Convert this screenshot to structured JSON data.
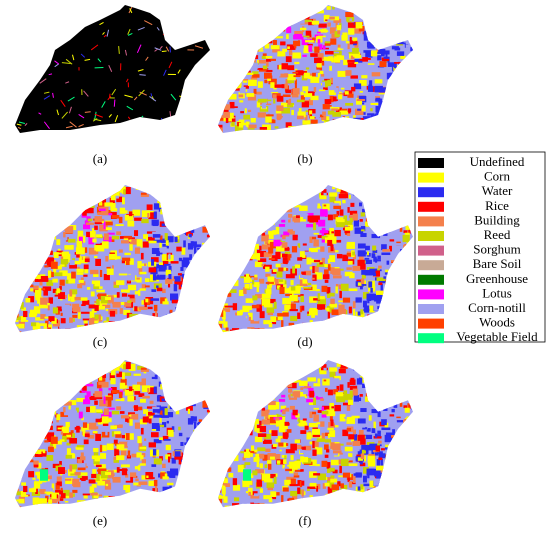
{
  "panels": [
    {
      "label": "(a)"
    },
    {
      "label": "(b)"
    },
    {
      "label": "(c)"
    },
    {
      "label": "(d)"
    },
    {
      "label": "(e)"
    },
    {
      "label": "(f)"
    }
  ],
  "legend": [
    {
      "label": "Undefined",
      "color": "#000000"
    },
    {
      "label": "Corn",
      "color": "#ffff00"
    },
    {
      "label": "Water",
      "color": "#2b2bf0"
    },
    {
      "label": "Rice",
      "color": "#ff0000"
    },
    {
      "label": "Building",
      "color": "#f4804c"
    },
    {
      "label": "Reed",
      "color": "#c8d400"
    },
    {
      "label": "Sorghum",
      "color": "#d0608a"
    },
    {
      "label": "Bare Soil",
      "color": "#c8aa96"
    },
    {
      "label": "Greenhouse",
      "color": "#007a00"
    },
    {
      "label": "Lotus",
      "color": "#ff00ff"
    },
    {
      "label": "Corn-notill",
      "color": "#a0a0f0"
    },
    {
      "label": "Woods",
      "color": "#ff4000"
    },
    {
      "label": "Vegetable Field",
      "color": "#00ff80"
    }
  ]
}
